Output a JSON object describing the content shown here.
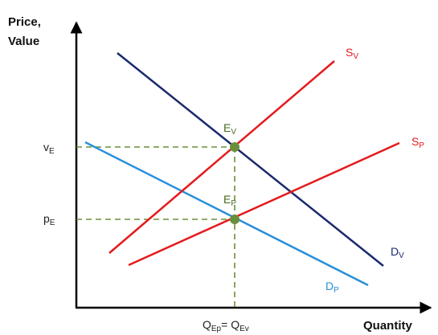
{
  "diagram": {
    "y_axis_title_line1": "Price,",
    "y_axis_title_line2": "Value",
    "x_axis_title": "Quantity",
    "tick_v": {
      "main": "v",
      "sub": "E"
    },
    "tick_p": {
      "main": "p",
      "sub": "E"
    },
    "x_tick": {
      "q1_main": "Q",
      "q1_sub": "Ep",
      "eq": "= ",
      "q2_main": "Q",
      "q2_sub": "Ev"
    },
    "curves": {
      "sv": {
        "main": "S",
        "sub": "V",
        "color": "#e41a1c"
      },
      "sp": {
        "main": "S",
        "sub": "P",
        "color": "#e41a1c"
      },
      "dv": {
        "main": "D",
        "sub": "V",
        "color": "#1a2a6c"
      },
      "dp": {
        "main": "D",
        "sub": "P",
        "color": "#2a8fd8"
      }
    },
    "points": {
      "ev": {
        "main": "E",
        "sub": "V"
      },
      "ep": {
        "main": "E",
        "sub": "P"
      }
    },
    "colors": {
      "axis": "#000000",
      "guide": "#6a8f3a",
      "point": "#6a8f3a",
      "tick_text": "#222222",
      "point_text": "#4a6a20"
    }
  }
}
